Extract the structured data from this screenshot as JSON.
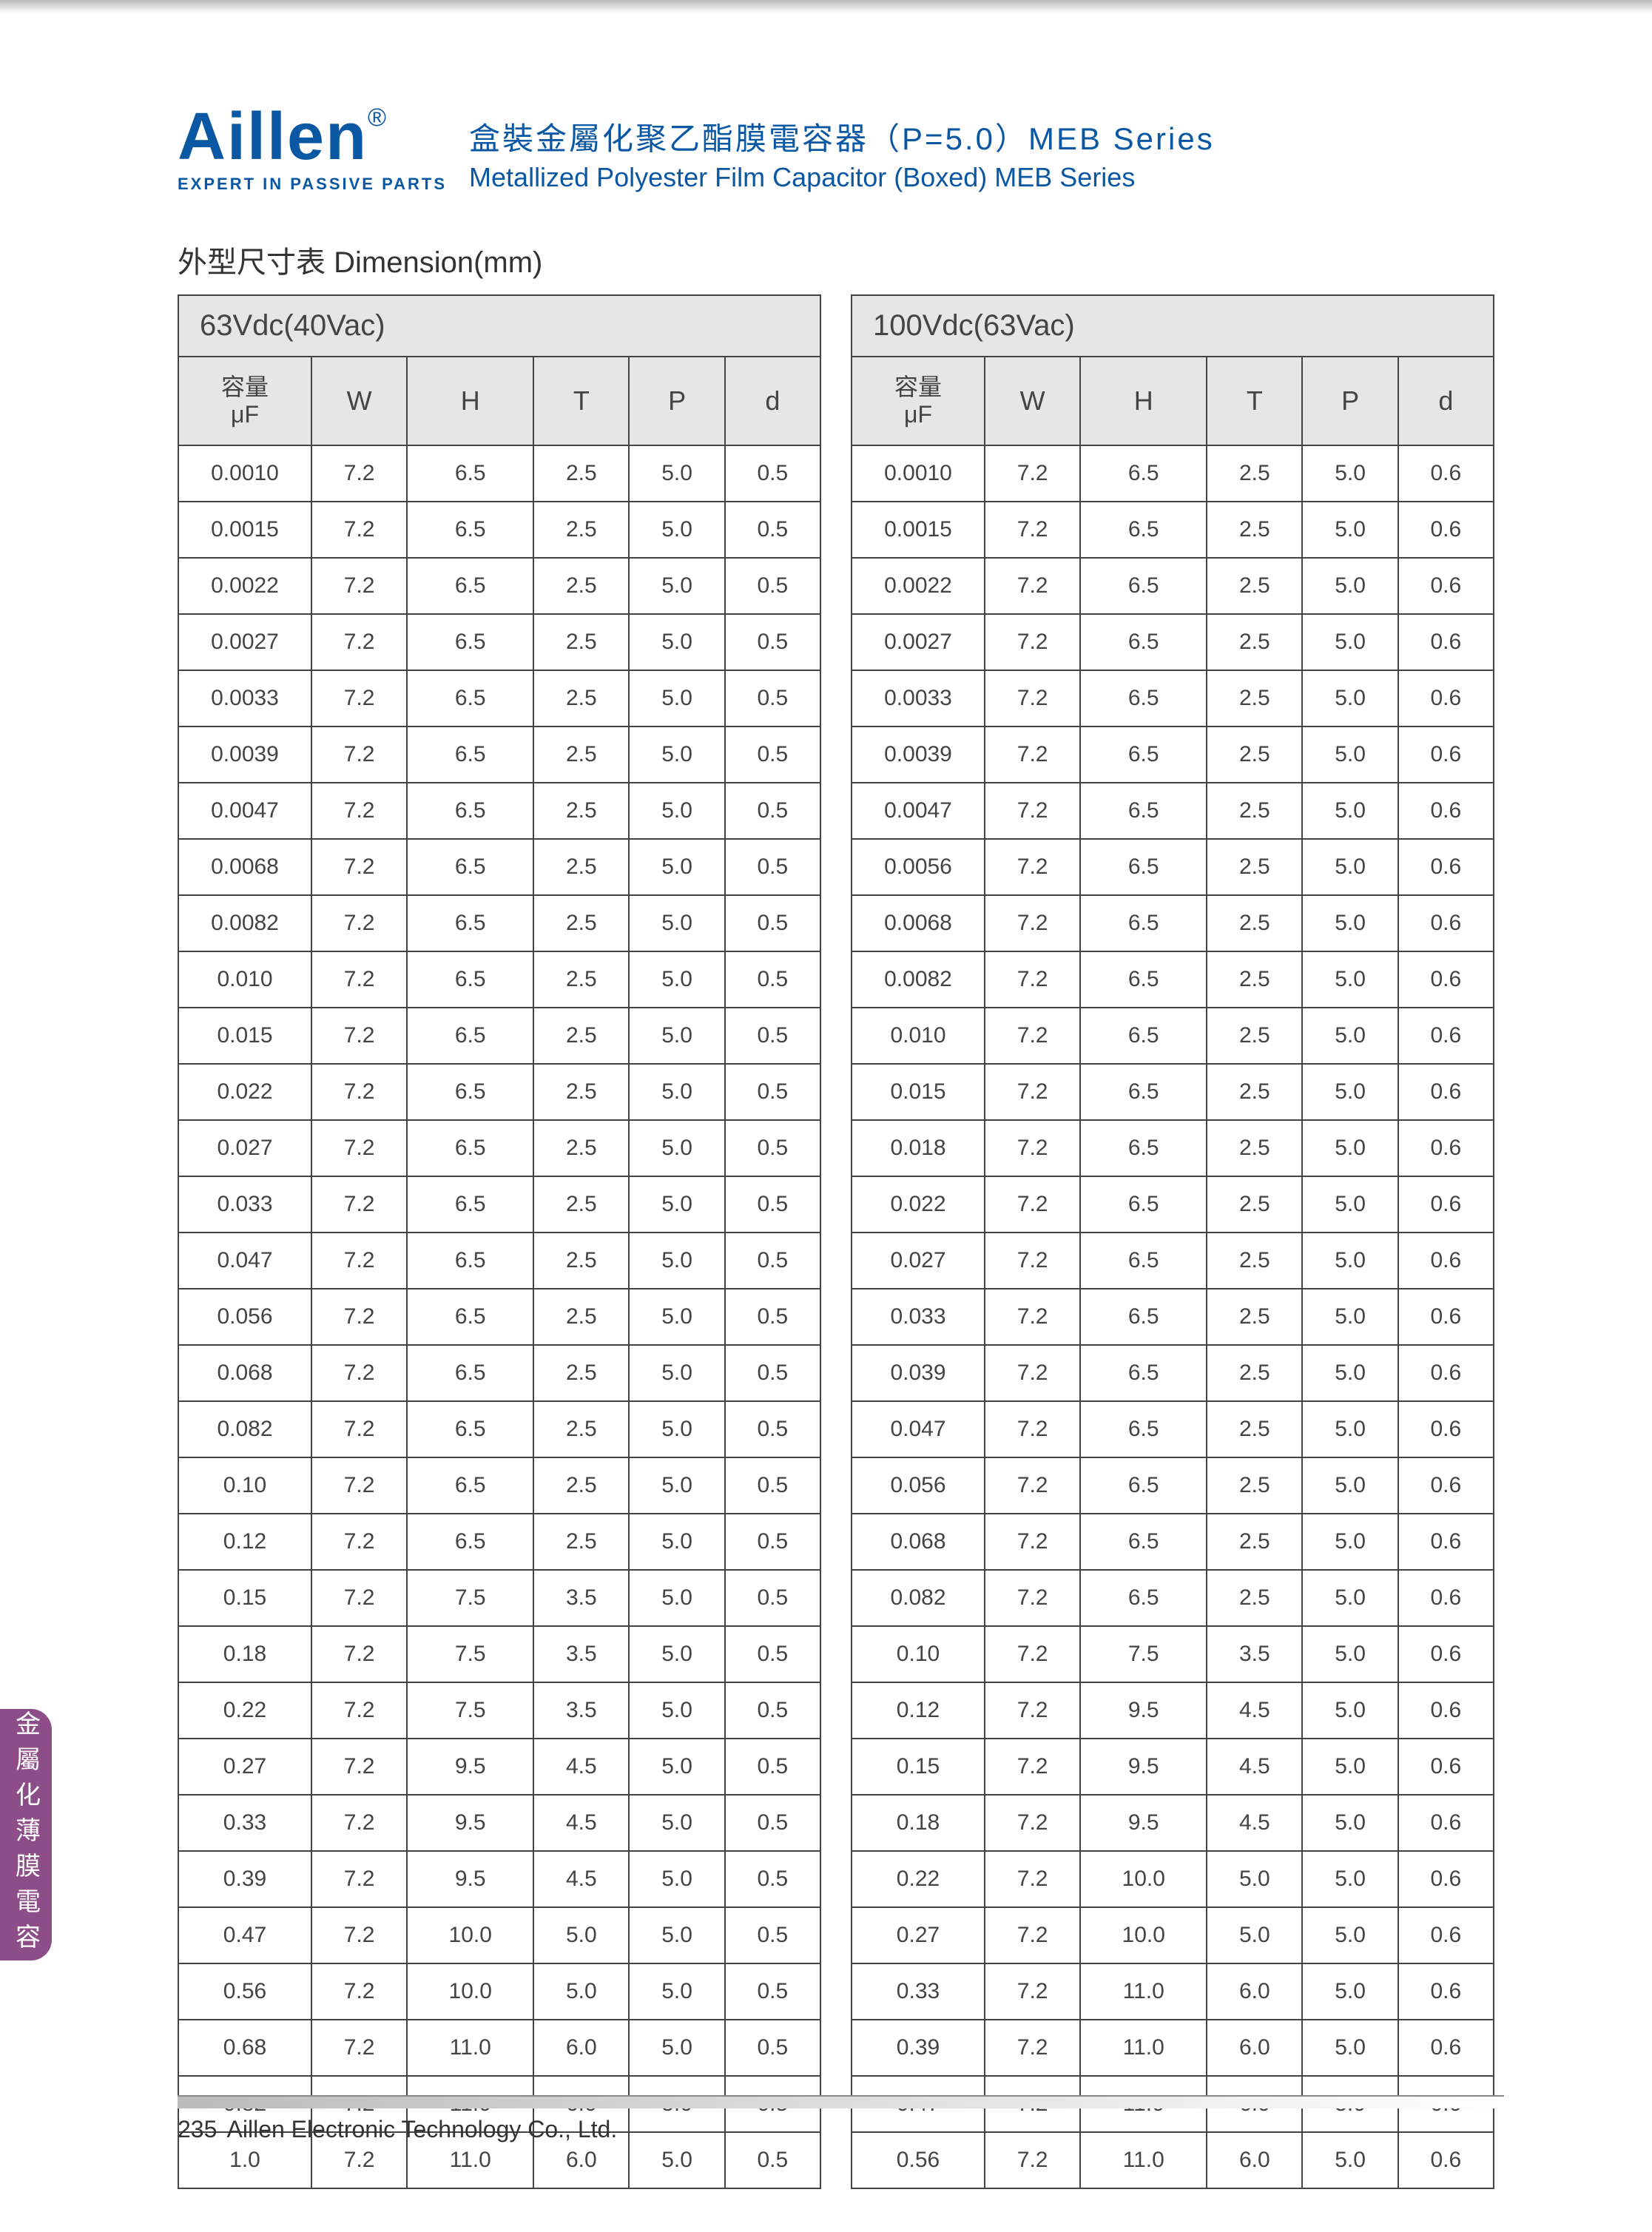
{
  "logo": {
    "main": "Aillen",
    "reg": "®",
    "sub": "EXPERT IN PASSIVE PARTS"
  },
  "title": {
    "cn": "盒裝金屬化聚乙酯膜電容器（P=5.0）MEB Series",
    "en": "Metallized Polyester Film Capacitor (Boxed) MEB Series"
  },
  "section_title": "外型尺寸表  Dimension(mm)",
  "side_tab": "金屬化薄膜電容",
  "footer": {
    "page": "235",
    "company": "Aillen Electronic Technology Co., Ltd."
  },
  "columns_cap_top": "容量",
  "columns_cap_bot": "μF",
  "columns": [
    "W",
    "H",
    "T",
    "P",
    "d"
  ],
  "table_left": {
    "voltage": "63Vdc(40Vac)",
    "rows": [
      [
        "0.0010",
        "7.2",
        "6.5",
        "2.5",
        "5.0",
        "0.5"
      ],
      [
        "0.0015",
        "7.2",
        "6.5",
        "2.5",
        "5.0",
        "0.5"
      ],
      [
        "0.0022",
        "7.2",
        "6.5",
        "2.5",
        "5.0",
        "0.5"
      ],
      [
        "0.0027",
        "7.2",
        "6.5",
        "2.5",
        "5.0",
        "0.5"
      ],
      [
        "0.0033",
        "7.2",
        "6.5",
        "2.5",
        "5.0",
        "0.5"
      ],
      [
        "0.0039",
        "7.2",
        "6.5",
        "2.5",
        "5.0",
        "0.5"
      ],
      [
        "0.0047",
        "7.2",
        "6.5",
        "2.5",
        "5.0",
        "0.5"
      ],
      [
        "0.0068",
        "7.2",
        "6.5",
        "2.5",
        "5.0",
        "0.5"
      ],
      [
        "0.0082",
        "7.2",
        "6.5",
        "2.5",
        "5.0",
        "0.5"
      ],
      [
        "0.010",
        "7.2",
        "6.5",
        "2.5",
        "5.0",
        "0.5"
      ],
      [
        "0.015",
        "7.2",
        "6.5",
        "2.5",
        "5.0",
        "0.5"
      ],
      [
        "0.022",
        "7.2",
        "6.5",
        "2.5",
        "5.0",
        "0.5"
      ],
      [
        "0.027",
        "7.2",
        "6.5",
        "2.5",
        "5.0",
        "0.5"
      ],
      [
        "0.033",
        "7.2",
        "6.5",
        "2.5",
        "5.0",
        "0.5"
      ],
      [
        "0.047",
        "7.2",
        "6.5",
        "2.5",
        "5.0",
        "0.5"
      ],
      [
        "0.056",
        "7.2",
        "6.5",
        "2.5",
        "5.0",
        "0.5"
      ],
      [
        "0.068",
        "7.2",
        "6.5",
        "2.5",
        "5.0",
        "0.5"
      ],
      [
        "0.082",
        "7.2",
        "6.5",
        "2.5",
        "5.0",
        "0.5"
      ],
      [
        "0.10",
        "7.2",
        "6.5",
        "2.5",
        "5.0",
        "0.5"
      ],
      [
        "0.12",
        "7.2",
        "6.5",
        "2.5",
        "5.0",
        "0.5"
      ],
      [
        "0.15",
        "7.2",
        "7.5",
        "3.5",
        "5.0",
        "0.5"
      ],
      [
        "0.18",
        "7.2",
        "7.5",
        "3.5",
        "5.0",
        "0.5"
      ],
      [
        "0.22",
        "7.2",
        "7.5",
        "3.5",
        "5.0",
        "0.5"
      ],
      [
        "0.27",
        "7.2",
        "9.5",
        "4.5",
        "5.0",
        "0.5"
      ],
      [
        "0.33",
        "7.2",
        "9.5",
        "4.5",
        "5.0",
        "0.5"
      ],
      [
        "0.39",
        "7.2",
        "9.5",
        "4.5",
        "5.0",
        "0.5"
      ],
      [
        "0.47",
        "7.2",
        "10.0",
        "5.0",
        "5.0",
        "0.5"
      ],
      [
        "0.56",
        "7.2",
        "10.0",
        "5.0",
        "5.0",
        "0.5"
      ],
      [
        "0.68",
        "7.2",
        "11.0",
        "6.0",
        "5.0",
        "0.5"
      ],
      [
        "0.82",
        "7.2",
        "11.0",
        "6.0",
        "5.0",
        "0.5"
      ],
      [
        "1.0",
        "7.2",
        "11.0",
        "6.0",
        "5.0",
        "0.5"
      ]
    ]
  },
  "table_right": {
    "voltage": "100Vdc(63Vac)",
    "rows": [
      [
        "0.0010",
        "7.2",
        "6.5",
        "2.5",
        "5.0",
        "0.6"
      ],
      [
        "0.0015",
        "7.2",
        "6.5",
        "2.5",
        "5.0",
        "0.6"
      ],
      [
        "0.0022",
        "7.2",
        "6.5",
        "2.5",
        "5.0",
        "0.6"
      ],
      [
        "0.0027",
        "7.2",
        "6.5",
        "2.5",
        "5.0",
        "0.6"
      ],
      [
        "0.0033",
        "7.2",
        "6.5",
        "2.5",
        "5.0",
        "0.6"
      ],
      [
        "0.0039",
        "7.2",
        "6.5",
        "2.5",
        "5.0",
        "0.6"
      ],
      [
        "0.0047",
        "7.2",
        "6.5",
        "2.5",
        "5.0",
        "0.6"
      ],
      [
        "0.0056",
        "7.2",
        "6.5",
        "2.5",
        "5.0",
        "0.6"
      ],
      [
        "0.0068",
        "7.2",
        "6.5",
        "2.5",
        "5.0",
        "0.6"
      ],
      [
        "0.0082",
        "7.2",
        "6.5",
        "2.5",
        "5.0",
        "0.6"
      ],
      [
        "0.010",
        "7.2",
        "6.5",
        "2.5",
        "5.0",
        "0.6"
      ],
      [
        "0.015",
        "7.2",
        "6.5",
        "2.5",
        "5.0",
        "0.6"
      ],
      [
        "0.018",
        "7.2",
        "6.5",
        "2.5",
        "5.0",
        "0.6"
      ],
      [
        "0.022",
        "7.2",
        "6.5",
        "2.5",
        "5.0",
        "0.6"
      ],
      [
        "0.027",
        "7.2",
        "6.5",
        "2.5",
        "5.0",
        "0.6"
      ],
      [
        "0.033",
        "7.2",
        "6.5",
        "2.5",
        "5.0",
        "0.6"
      ],
      [
        "0.039",
        "7.2",
        "6.5",
        "2.5",
        "5.0",
        "0.6"
      ],
      [
        "0.047",
        "7.2",
        "6.5",
        "2.5",
        "5.0",
        "0.6"
      ],
      [
        "0.056",
        "7.2",
        "6.5",
        "2.5",
        "5.0",
        "0.6"
      ],
      [
        "0.068",
        "7.2",
        "6.5",
        "2.5",
        "5.0",
        "0.6"
      ],
      [
        "0.082",
        "7.2",
        "6.5",
        "2.5",
        "5.0",
        "0.6"
      ],
      [
        "0.10",
        "7.2",
        "7.5",
        "3.5",
        "5.0",
        "0.6"
      ],
      [
        "0.12",
        "7.2",
        "9.5",
        "4.5",
        "5.0",
        "0.6"
      ],
      [
        "0.15",
        "7.2",
        "9.5",
        "4.5",
        "5.0",
        "0.6"
      ],
      [
        "0.18",
        "7.2",
        "9.5",
        "4.5",
        "5.0",
        "0.6"
      ],
      [
        "0.22",
        "7.2",
        "10.0",
        "5.0",
        "5.0",
        "0.6"
      ],
      [
        "0.27",
        "7.2",
        "10.0",
        "5.0",
        "5.0",
        "0.6"
      ],
      [
        "0.33",
        "7.2",
        "11.0",
        "6.0",
        "5.0",
        "0.6"
      ],
      [
        "0.39",
        "7.2",
        "11.0",
        "6.0",
        "5.0",
        "0.6"
      ],
      [
        "0.47",
        "7.2",
        "11.0",
        "6.0",
        "5.0",
        "0.6"
      ],
      [
        "0.56",
        "7.2",
        "11.0",
        "6.0",
        "5.0",
        "0.6"
      ]
    ]
  }
}
